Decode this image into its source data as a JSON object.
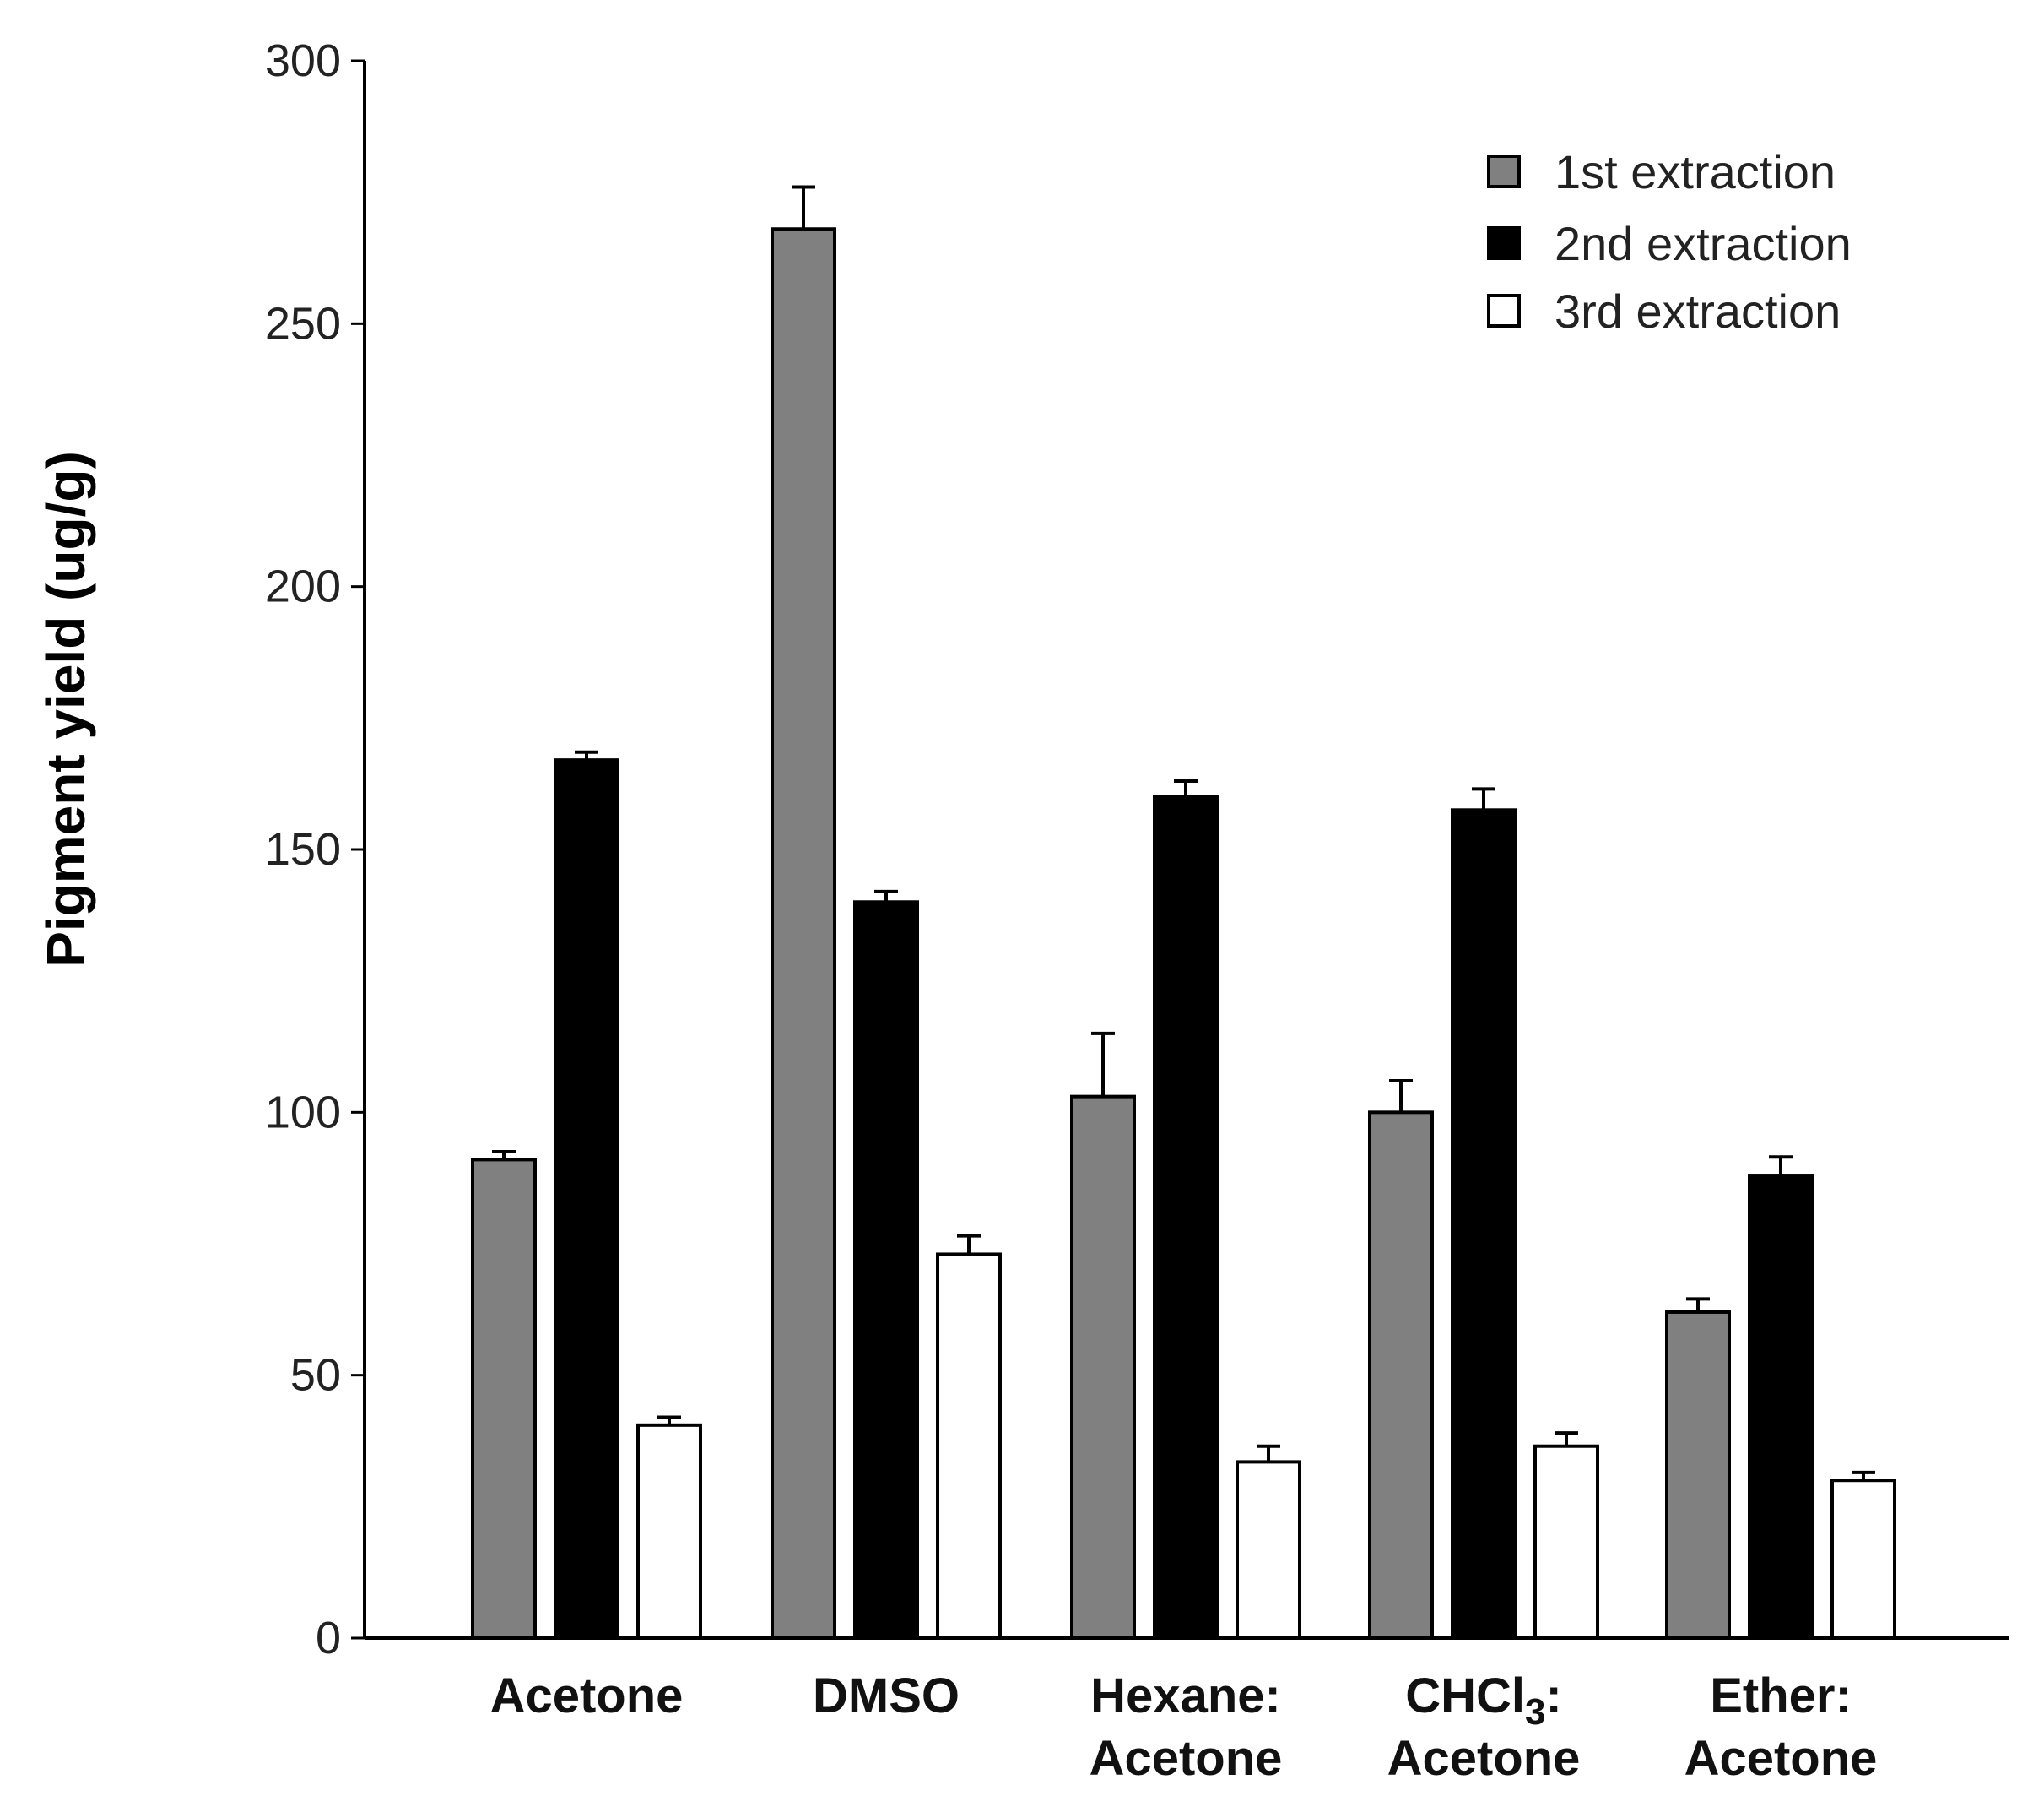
{
  "chart_data": {
    "type": "bar",
    "title": "",
    "xlabel": "",
    "ylabel": "Pigment yield (ug/g)",
    "ylim": [
      0,
      300
    ],
    "yticks": [
      0,
      50,
      100,
      150,
      200,
      250,
      300
    ],
    "grid": false,
    "legend_position": "top-right",
    "categories": [
      {
        "line1": "Acetone",
        "line2": ""
      },
      {
        "line1": "DMSO",
        "line2": ""
      },
      {
        "line1": "Hexane:",
        "line2": "Acetone"
      },
      {
        "line1": "CHCl",
        "sub": "3",
        "line1_tail": ":",
        "line2": "Acetone"
      },
      {
        "line1": "Ether:",
        "line2": "Acetone"
      }
    ],
    "series": [
      {
        "name": "1st extraction",
        "color": "#808080",
        "values": [
          91,
          268,
          103,
          100,
          62
        ],
        "errors": [
          1.5,
          8,
          12,
          6,
          2.5
        ]
      },
      {
        "name": "2nd extraction",
        "color": "#000000",
        "values": [
          167,
          140,
          160,
          157.5,
          88
        ],
        "errors": [
          1.5,
          2,
          3,
          4,
          3.5
        ]
      },
      {
        "name": "3rd extraction",
        "color": "#ffffff",
        "values": [
          40.5,
          73,
          33.5,
          36.5,
          30
        ],
        "errors": [
          1.5,
          3.5,
          3,
          2.5,
          1.5
        ]
      }
    ]
  }
}
